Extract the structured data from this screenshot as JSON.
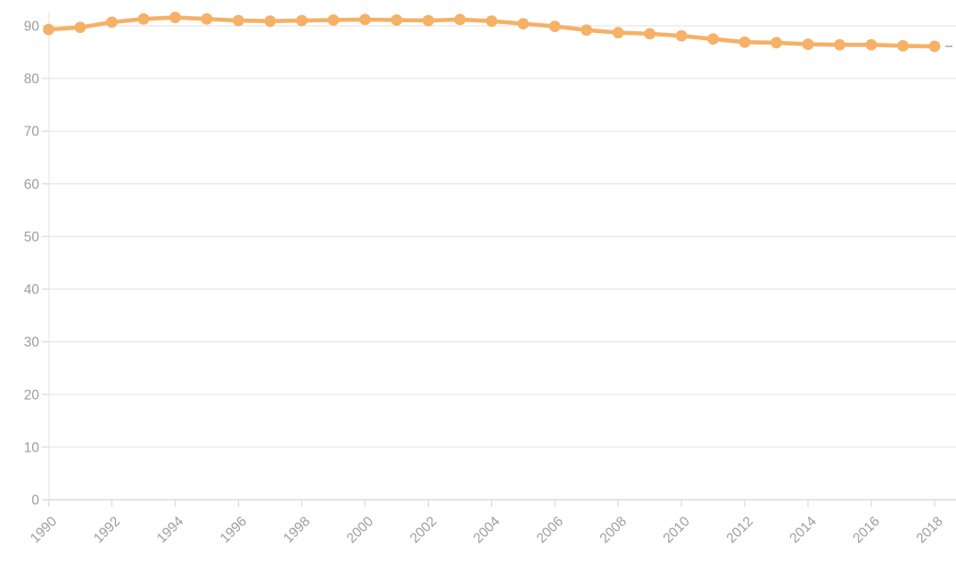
{
  "chart_data": {
    "type": "line",
    "title": "",
    "xlabel": "",
    "ylabel": "",
    "x": [
      1990,
      1991,
      1992,
      1993,
      1994,
      1995,
      1996,
      1997,
      1998,
      1999,
      2000,
      2001,
      2002,
      2003,
      2004,
      2005,
      2006,
      2007,
      2008,
      2009,
      2010,
      2011,
      2012,
      2013,
      2014,
      2015,
      2016,
      2017,
      2018
    ],
    "series": [
      {
        "name": "series-1",
        "color": "#f5b166",
        "marker": "circle",
        "values": [
          89.3,
          89.7,
          90.7,
          91.3,
          91.6,
          91.3,
          91.0,
          90.9,
          91.0,
          91.1,
          91.2,
          91.1,
          91.0,
          91.2,
          90.9,
          90.4,
          89.9,
          89.2,
          88.7,
          88.5,
          88.1,
          87.5,
          86.9,
          86.8,
          86.5,
          86.4,
          86.4,
          86.2,
          86.1
        ]
      }
    ],
    "xticks": [
      1990,
      1992,
      1994,
      1996,
      1998,
      2000,
      2002,
      2004,
      2006,
      2008,
      2010,
      2012,
      2014,
      2016,
      2018
    ],
    "yticks": [
      0,
      10,
      20,
      30,
      40,
      50,
      60,
      70,
      80,
      90
    ],
    "ylim": [
      0,
      92.5
    ],
    "grid": "horizontal",
    "legend": "none",
    "end_dash": true
  },
  "colors": {
    "line": "#f5b166",
    "gridline": "#e7e7e7",
    "axis_line": "#d4d4d4",
    "tick": "#dcdcdc",
    "label": "#9d9d9d",
    "end_dash": "#bdbdbd",
    "background": "#ffffff"
  }
}
